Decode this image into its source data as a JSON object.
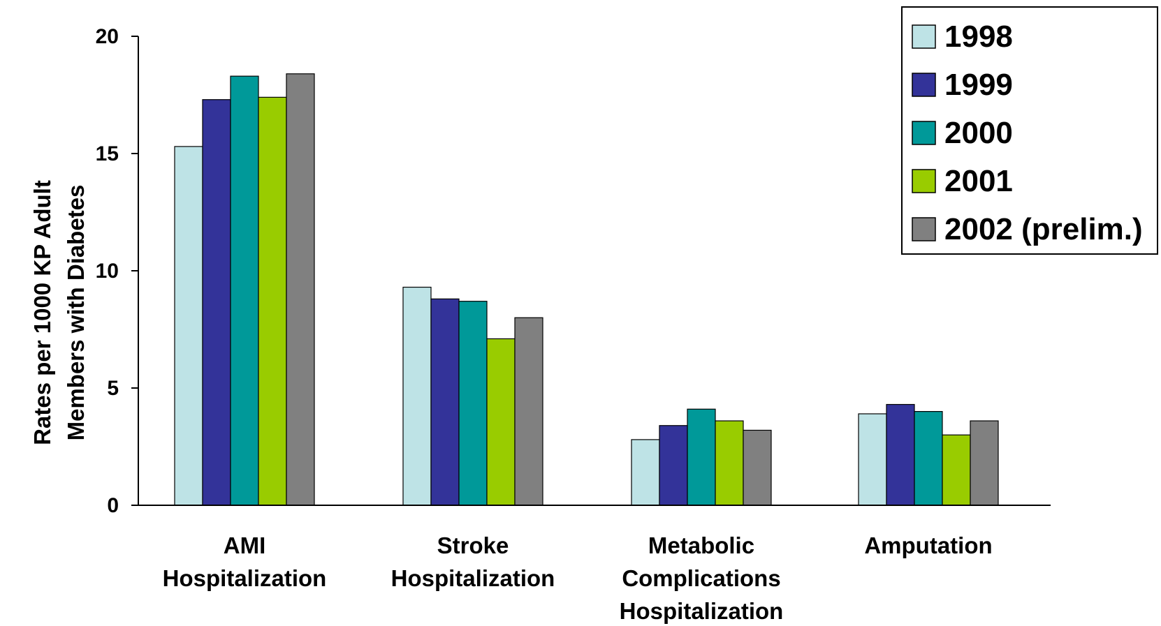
{
  "chart_data": {
    "type": "bar",
    "ylabel_lines": [
      "Rates per 1000 KP Adult",
      "Members with Diabetes"
    ],
    "ylim": [
      0,
      20
    ],
    "yticks": [
      "0",
      "5",
      "10",
      "15",
      "20"
    ],
    "grid": false,
    "legend_position": "top-right",
    "categories": [
      [
        "AMI",
        "Hospitalization"
      ],
      [
        "Stroke",
        "Hospitalization"
      ],
      [
        "Metabolic",
        "Complications",
        "Hospitalization"
      ],
      [
        "Amputation"
      ]
    ],
    "series": [
      {
        "name": "1998",
        "color": "#BEE3E6",
        "values": [
          15.3,
          9.3,
          2.8,
          3.9
        ]
      },
      {
        "name": "1999",
        "color": "#333399",
        "values": [
          17.3,
          8.8,
          3.4,
          4.3
        ]
      },
      {
        "name": "2000",
        "color": "#009999",
        "values": [
          18.3,
          8.7,
          4.1,
          4.0
        ]
      },
      {
        "name": "2001",
        "color": "#99CC00",
        "values": [
          17.4,
          7.1,
          3.6,
          3.0
        ]
      },
      {
        "name": "2002 (prelim.)",
        "color": "#808080",
        "values": [
          18.4,
          8.0,
          3.2,
          3.6
        ]
      }
    ]
  }
}
